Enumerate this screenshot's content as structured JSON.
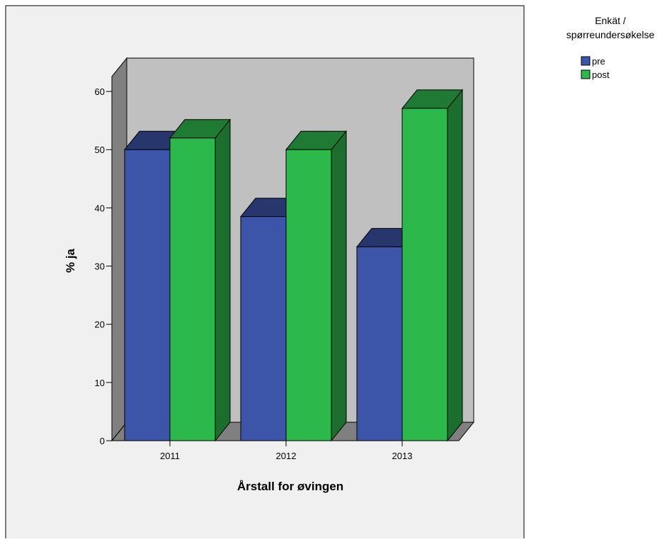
{
  "chart_data": {
    "type": "bar",
    "title": "",
    "categories": [
      "2011",
      "2012",
      "2013"
    ],
    "series": [
      {
        "name": "pre",
        "values": [
          50,
          38.5,
          33.3
        ]
      },
      {
        "name": "post",
        "values": [
          52,
          50,
          57.1
        ]
      }
    ],
    "xlabel": "Årstall for øvingen",
    "ylabel": "% ja",
    "ylim": [
      0,
      65
    ],
    "yticks": [
      "0",
      "10",
      "20",
      "30",
      "40",
      "50",
      "60"
    ],
    "legend": {
      "title_line1": "Enkät /",
      "title_line2": "spørreundersøkelse",
      "placement": "right"
    },
    "style": "3d",
    "grid": false,
    "colors": {
      "pre_front": "#3c55a9",
      "pre_top": "#27376e",
      "pre_side": "#1f2d5a",
      "post_front": "#2cb84b",
      "post_top": "#1f7a34",
      "post_side": "#1c6e2f",
      "panel": "#f0f0f0",
      "back_wall": "#c0c0c0",
      "side_wall": "#808080",
      "floor": "#808080"
    }
  }
}
